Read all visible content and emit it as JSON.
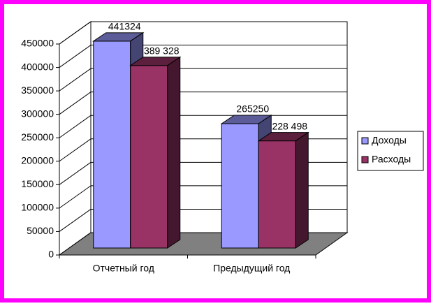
{
  "chart_data": {
    "type": "bar3d",
    "categories": [
      "Отчетный год",
      "Предыдущий год"
    ],
    "series": [
      {
        "name": "Доходы",
        "color": "#9999ff",
        "values": [
          441324,
          265250
        ],
        "value_labels": [
          "441324",
          "265250"
        ]
      },
      {
        "name": "Расходы",
        "color": "#993366",
        "values": [
          389328,
          228498
        ],
        "value_labels": [
          "389 328",
          "228 498"
        ]
      }
    ],
    "ylim": [
      0,
      450000
    ],
    "yticks": [
      0,
      50000,
      100000,
      150000,
      200000,
      250000,
      300000,
      350000,
      400000,
      450000
    ],
    "grid": true,
    "legend": "right"
  }
}
